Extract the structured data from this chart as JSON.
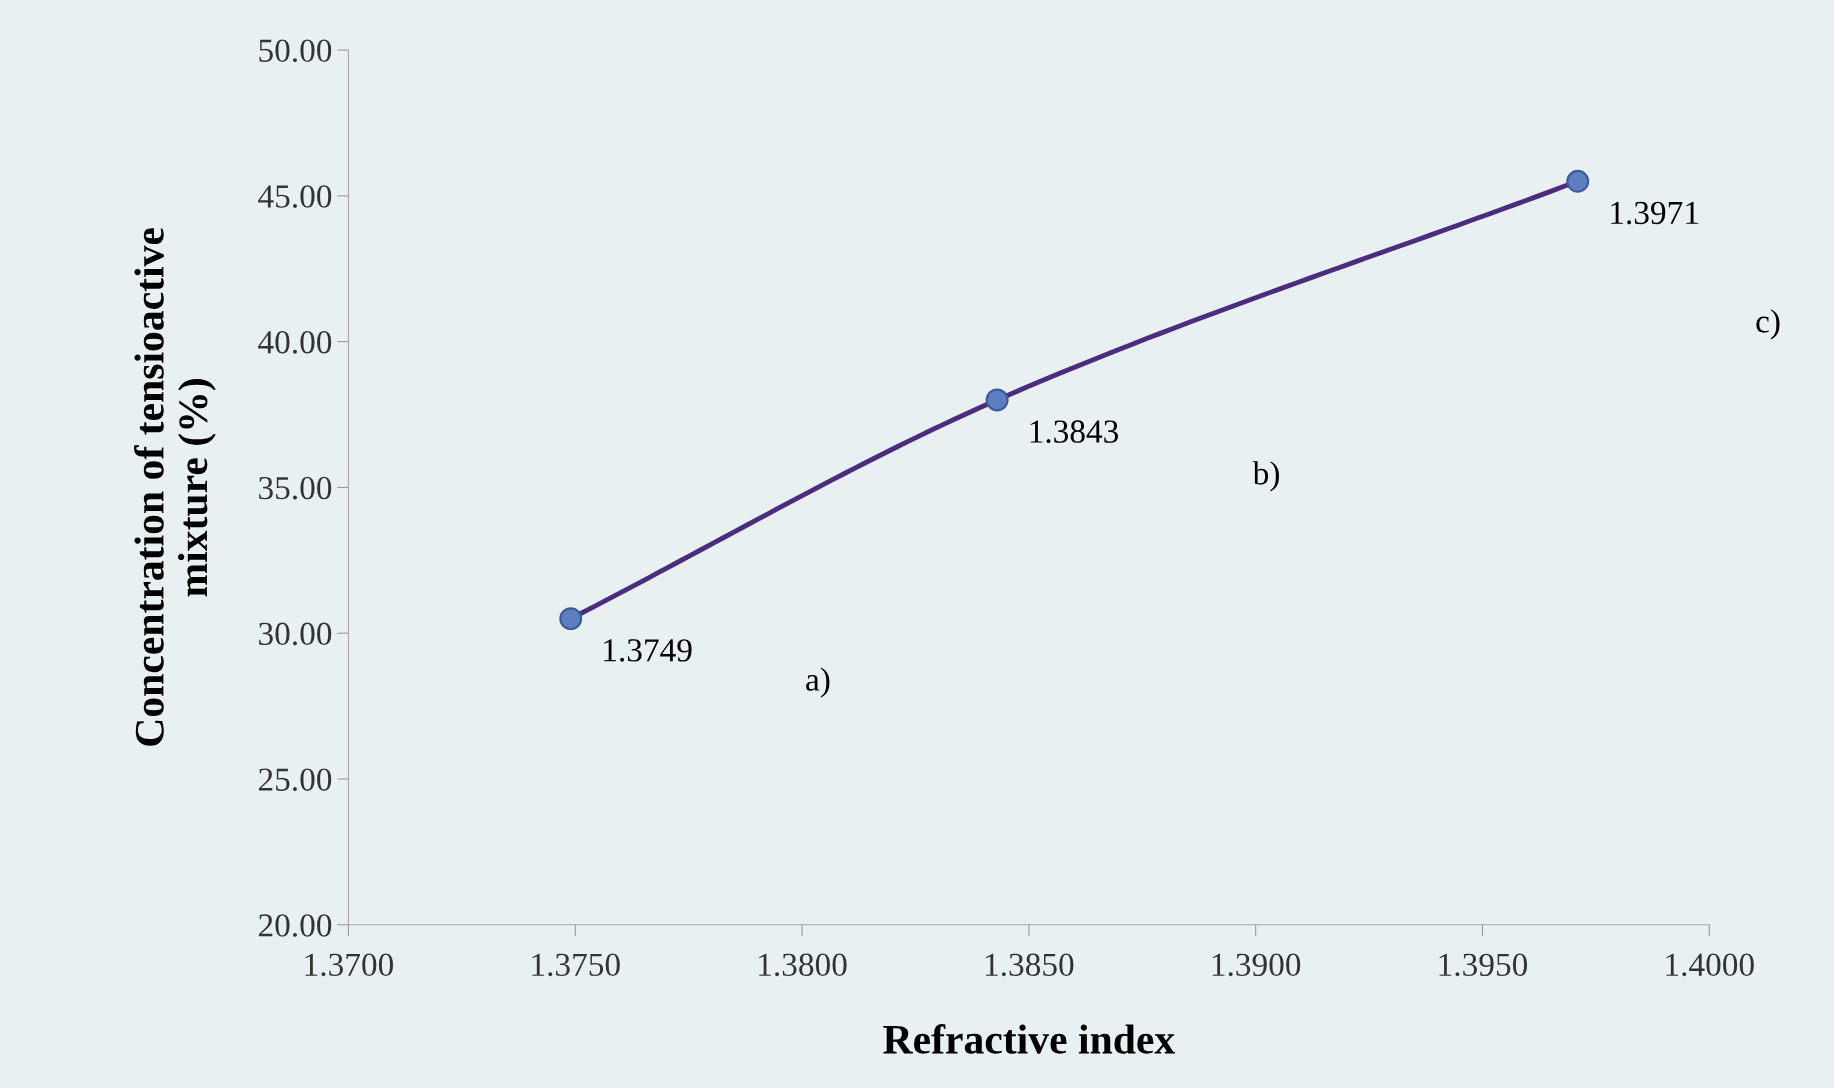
{
  "chart_data": {
    "type": "line",
    "xlabel": "Refractive index",
    "ylabel": "Concentration of tensioactive\nmixture (%)",
    "x": [
      1.3749,
      1.3843,
      1.3971
    ],
    "series": [
      {
        "color": "#4b2d7f",
        "colors": [
          "#5b7fc0",
          "#5b7fc0",
          "#5b7fc0"
        ],
        "values": [
          30.5,
          38.0,
          45.5
        ]
      }
    ],
    "marker": "circle",
    "line_style": "solid",
    "grid": false,
    "legend": false,
    "xlim": [
      1.37,
      1.4
    ],
    "xticks": [
      {
        "value": 1.37,
        "label": "1.3700"
      },
      {
        "value": 1.375,
        "label": "1.3750"
      },
      {
        "value": 1.38,
        "label": "1.3800"
      },
      {
        "value": 1.385,
        "label": "1.3850"
      },
      {
        "value": 1.39,
        "label": "1.3900"
      },
      {
        "value": 1.395,
        "label": "1.3950"
      },
      {
        "value": 1.4,
        "label": "1.4000"
      }
    ],
    "ylim": [
      20,
      50
    ],
    "yticks": [
      {
        "value": 20,
        "label": "20.00"
      },
      {
        "value": 25,
        "label": "25.00"
      },
      {
        "value": 30,
        "label": "30.00"
      },
      {
        "value": 35,
        "label": "35.00"
      },
      {
        "value": 40,
        "label": "40.00"
      },
      {
        "value": 45,
        "label": "45.00"
      },
      {
        "value": 50,
        "label": "50.00"
      }
    ],
    "annotations": [
      {
        "text": "1.3749",
        "x": 1.3749,
        "y": 30.5
      },
      "a)",
      {
        "text": "1.3843",
        "x": 1.3843,
        "y": 38.0
      },
      "b)",
      {
        "text": "1.3971",
        "x": 1.3971,
        "y": 45.5
      },
      "c)"
    ]
  }
}
